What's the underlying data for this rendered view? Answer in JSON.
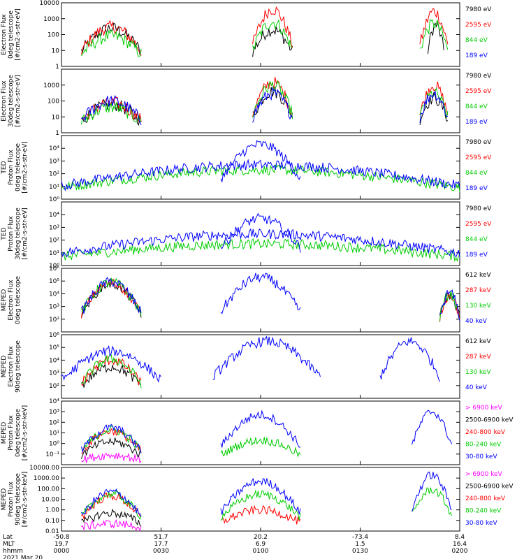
{
  "colors": {
    "black": "#000000",
    "red": "#ff0000",
    "green": "#00cc00",
    "blue": "#0000ff",
    "magenta": "#ff00ff"
  },
  "chart_data": [
    {
      "type": "line",
      "panel": 1,
      "ylabel": [
        "Electron Flux",
        "0deg telescope",
        "[#/cm2-s-str-eV]"
      ],
      "yscale": "log",
      "ylim": [
        1,
        10000
      ],
      "ytick_labels": [
        "1",
        "10",
        "100",
        "1000",
        "10000"
      ],
      "legend": [
        {
          "name": "7980 eV",
          "color": "black"
        },
        {
          "name": "2595 eV",
          "color": "red"
        },
        {
          "name": "844 eV",
          "color": "green"
        },
        {
          "name": "189 eV",
          "color": "blue"
        }
      ],
      "series": [
        {
          "name": "7980 eV",
          "color": "black",
          "bursts": [
            [
              5,
              20,
              250
            ],
            [
              48,
              58,
              200
            ],
            [
              92,
              96,
              400
            ]
          ]
        },
        {
          "name": "2595 eV",
          "color": "red",
          "bursts": [
            [
              5,
              20,
              300
            ],
            [
              48,
              58,
              4000
            ],
            [
              90,
              97,
              3000
            ]
          ]
        },
        {
          "name": "844 eV",
          "color": "green",
          "bursts": [
            [
              5,
              20,
              80
            ],
            [
              48,
              58,
              600
            ],
            [
              90,
              97,
              500
            ]
          ]
        },
        {
          "name": "189 eV",
          "color": "blue",
          "bursts": []
        }
      ]
    },
    {
      "type": "line",
      "panel": 2,
      "ylabel": [
        "Electron Flux",
        "30deg telescope",
        "[#/cm2-s-str-eV]"
      ],
      "yscale": "log",
      "ylim": [
        1,
        10000
      ],
      "ytick_labels": [
        "1",
        "10",
        "100",
        "1000"
      ],
      "legend": [
        {
          "name": "7980 eV",
          "color": "black"
        },
        {
          "name": "2595 eV",
          "color": "red"
        },
        {
          "name": "844 eV",
          "color": "green"
        },
        {
          "name": "189 eV",
          "color": "blue"
        }
      ],
      "series": [
        {
          "name": "7980 eV",
          "color": "black",
          "bursts": [
            [
              5,
              20,
              60
            ],
            [
              48,
              58,
              400
            ],
            [
              90,
              97,
              150
            ]
          ]
        },
        {
          "name": "2595 eV",
          "color": "red",
          "bursts": [
            [
              5,
              20,
              80
            ],
            [
              48,
              58,
              1500
            ],
            [
              90,
              97,
              1000
            ]
          ]
        },
        {
          "name": "844 eV",
          "color": "green",
          "bursts": [
            [
              5,
              20,
              40
            ],
            [
              48,
              58,
              1000
            ],
            [
              90,
              97,
              300
            ]
          ]
        },
        {
          "name": "189 eV",
          "color": "blue",
          "bursts": [
            [
              5,
              20,
              100
            ],
            [
              48,
              58,
              300
            ],
            [
              90,
              97,
              300
            ]
          ]
        }
      ]
    },
    {
      "type": "line",
      "panel": 3,
      "ylabel": [
        "TED",
        "Proton Flux",
        "0deg telescope",
        "[#/cm2-s-str-eV]"
      ],
      "yscale": "log",
      "ylim": [
        1,
        100000
      ],
      "ytick_labels": [
        "10⁰",
        "10¹",
        "10²",
        "10³",
        "10⁴"
      ],
      "legend": [
        {
          "name": "7980 eV",
          "color": "black"
        },
        {
          "name": "2595 eV",
          "color": "red"
        },
        {
          "name": "844 eV",
          "color": "green"
        },
        {
          "name": "189 eV",
          "color": "blue"
        }
      ],
      "series": [
        {
          "name": "7980 eV",
          "color": "black",
          "bursts": []
        },
        {
          "name": "2595 eV",
          "color": "red",
          "bursts": []
        },
        {
          "name": "844 eV",
          "color": "green",
          "bursts": [
            [
              0,
              100,
              200
            ]
          ]
        },
        {
          "name": "189 eV",
          "color": "blue",
          "bursts": [
            [
              0,
              100,
              500
            ],
            [
              40,
              60,
              20000
            ]
          ]
        }
      ]
    },
    {
      "type": "line",
      "panel": 4,
      "ylabel": [
        "TED",
        "Proton Flux",
        "30deg telescope",
        "[#/cm2-s-str-eV]"
      ],
      "yscale": "log",
      "ylim": [
        1,
        100000
      ],
      "ytick_labels": [
        "10⁰",
        "10¹",
        "10²",
        "10³",
        "10⁴"
      ],
      "legend": [
        {
          "name": "7980 eV",
          "color": "black"
        },
        {
          "name": "2595 eV",
          "color": "red"
        },
        {
          "name": "844 eV",
          "color": "green"
        },
        {
          "name": "189 eV",
          "color": "blue"
        }
      ],
      "series": [
        {
          "name": "7980 eV",
          "color": "black",
          "bursts": []
        },
        {
          "name": "2595 eV",
          "color": "red",
          "bursts": []
        },
        {
          "name": "844 eV",
          "color": "green",
          "bursts": [
            [
              0,
              100,
              50
            ]
          ]
        },
        {
          "name": "189 eV",
          "color": "blue",
          "bursts": [
            [
              0,
              100,
              300
            ],
            [
              40,
              60,
              5000
            ]
          ]
        }
      ]
    },
    {
      "type": "line",
      "panel": 5,
      "ylabel": [
        "MEPED",
        "Electron Flux",
        "0deg telescope"
      ],
      "yscale": "log",
      "ylim": [
        10,
        1000000
      ],
      "ytick_labels": [
        "10²",
        "10³",
        "10⁴",
        "10⁵",
        "10⁶"
      ],
      "legend": [
        {
          "name": "612 keV",
          "color": "black"
        },
        {
          "name": "287 keV",
          "color": "red"
        },
        {
          "name": "130 keV",
          "color": "green"
        },
        {
          "name": "40 keV",
          "color": "blue"
        }
      ],
      "series": [
        {
          "name": "612 keV",
          "color": "black",
          "bursts": [
            [
              5,
              20,
              60000
            ],
            [
              95,
              100,
              8000
            ]
          ]
        },
        {
          "name": "287 keV",
          "color": "red",
          "bursts": [
            [
              5,
              20,
              70000
            ],
            [
              95,
              100,
              9000
            ]
          ]
        },
        {
          "name": "130 keV",
          "color": "green",
          "bursts": [
            [
              5,
              20,
              80000
            ],
            [
              95,
              100,
              10000
            ]
          ]
        },
        {
          "name": "40 keV",
          "color": "blue",
          "bursts": [
            [
              5,
              20,
              90000
            ],
            [
              40,
              60,
              200000
            ],
            [
              95,
              100,
              12000
            ]
          ]
        }
      ]
    },
    {
      "type": "line",
      "panel": 6,
      "ylabel": [
        "MEPED",
        "Electron Flux",
        "90deg telescope"
      ],
      "yscale": "log",
      "ylim": [
        10,
        1000000
      ],
      "ytick_labels": [
        "10²",
        "10³",
        "10⁴",
        "10⁵",
        "10⁶"
      ],
      "legend": [
        {
          "name": "612 keV",
          "color": "black"
        },
        {
          "name": "287 keV",
          "color": "red"
        },
        {
          "name": "130 keV",
          "color": "green"
        },
        {
          "name": "40 keV",
          "color": "blue"
        }
      ],
      "series": [
        {
          "name": "612 keV",
          "color": "black",
          "bursts": [
            [
              5,
              20,
              3000
            ]
          ]
        },
        {
          "name": "287 keV",
          "color": "red",
          "bursts": [
            [
              5,
              20,
              10000
            ]
          ]
        },
        {
          "name": "130 keV",
          "color": "green",
          "bursts": [
            [
              5,
              20,
              12000
            ]
          ]
        },
        {
          "name": "40 keV",
          "color": "blue",
          "bursts": [
            [
              0,
              25,
              50000
            ],
            [
              38,
              65,
              300000
            ],
            [
              80,
              95,
              300000
            ]
          ]
        }
      ]
    },
    {
      "type": "line",
      "panel": 7,
      "ylabel": [
        "MEPED",
        "Proton Flux",
        "0deg telescope",
        "[#/cm2-s-str-keV]"
      ],
      "yscale": "log",
      "ylim": [
        0.01,
        10000
      ],
      "ytick_labels": [
        "10⁻¹",
        "10⁰",
        "10¹",
        "10²",
        "10³",
        "10⁴"
      ],
      "legend": [
        {
          "name": "> 6900 keV",
          "color": "magenta"
        },
        {
          "name": "2500-6900 keV",
          "color": "black"
        },
        {
          "name": "240-800 keV",
          "color": "red"
        },
        {
          "name": "80-240 keV",
          "color": "green"
        },
        {
          "name": "30-80 keV",
          "color": "blue"
        }
      ],
      "series": [
        {
          "name": "> 6900 keV",
          "color": "magenta",
          "bursts": [
            [
              5,
              20,
              0.08
            ]
          ]
        },
        {
          "name": "2500-6900 keV",
          "color": "black",
          "bursts": [
            [
              5,
              20,
              1.5
            ]
          ]
        },
        {
          "name": "240-800 keV",
          "color": "red",
          "bursts": [
            [
              5,
              20,
              15
            ]
          ]
        },
        {
          "name": "80-240 keV",
          "color": "green",
          "bursts": [
            [
              5,
              20,
              20
            ],
            [
              40,
              60,
              2
            ]
          ]
        },
        {
          "name": "30-80 keV",
          "color": "blue",
          "bursts": [
            [
              5,
              20,
              30
            ],
            [
              40,
              60,
              500
            ],
            [
              88,
              98,
              1000
            ]
          ]
        }
      ]
    },
    {
      "type": "line",
      "panel": 8,
      "ylabel": [
        "MEPED",
        "Proton Flux",
        "90deg telescope",
        "[#/cm2-s-str-keV]"
      ],
      "yscale": "log",
      "ylim": [
        0.01,
        10000
      ],
      "ytick_labels": [
        "0.01",
        "0.10",
        "1.00",
        "10.00",
        "100.00",
        "1000.00",
        "10000.00"
      ],
      "legend": [
        {
          "name": "> 6900 keV",
          "color": "magenta"
        },
        {
          "name": "2500-6900 keV",
          "color": "black"
        },
        {
          "name": "240-800 keV",
          "color": "red"
        },
        {
          "name": "80-240 keV",
          "color": "green"
        },
        {
          "name": "30-80 keV",
          "color": "blue"
        }
      ],
      "series": [
        {
          "name": "> 6900 keV",
          "color": "magenta",
          "bursts": [
            [
              5,
              20,
              0.05
            ]
          ]
        },
        {
          "name": "2500-6900 keV",
          "color": "black",
          "bursts": [
            [
              5,
              20,
              0.5
            ]
          ]
        },
        {
          "name": "240-800 keV",
          "color": "red",
          "bursts": [
            [
              5,
              20,
              20
            ],
            [
              40,
              60,
              1
            ]
          ]
        },
        {
          "name": "80-240 keV",
          "color": "green",
          "bursts": [
            [
              5,
              20,
              30
            ],
            [
              40,
              60,
              30
            ],
            [
              88,
              98,
              80
            ]
          ]
        },
        {
          "name": "30-80 keV",
          "color": "blue",
          "bursts": [
            [
              5,
              20,
              50
            ],
            [
              40,
              60,
              500
            ],
            [
              88,
              98,
              2000
            ]
          ]
        }
      ]
    }
  ],
  "xaxis": {
    "row_labels": [
      "Lat",
      "MLT",
      "hhmm"
    ],
    "date": "2021 Mar 20",
    "ticks": [
      {
        "lat": "-50.8",
        "mlt": "19.7",
        "time": "0000"
      },
      {
        "lat": "51.7",
        "mlt": "17.7",
        "time": "0030"
      },
      {
        "lat": "20.2",
        "mlt": "6.9",
        "time": "0100"
      },
      {
        "lat": "-73.4",
        "mlt": "1.5",
        "time": "0130"
      },
      {
        "lat": "8.4",
        "mlt": "16.4",
        "time": "0200"
      }
    ]
  }
}
